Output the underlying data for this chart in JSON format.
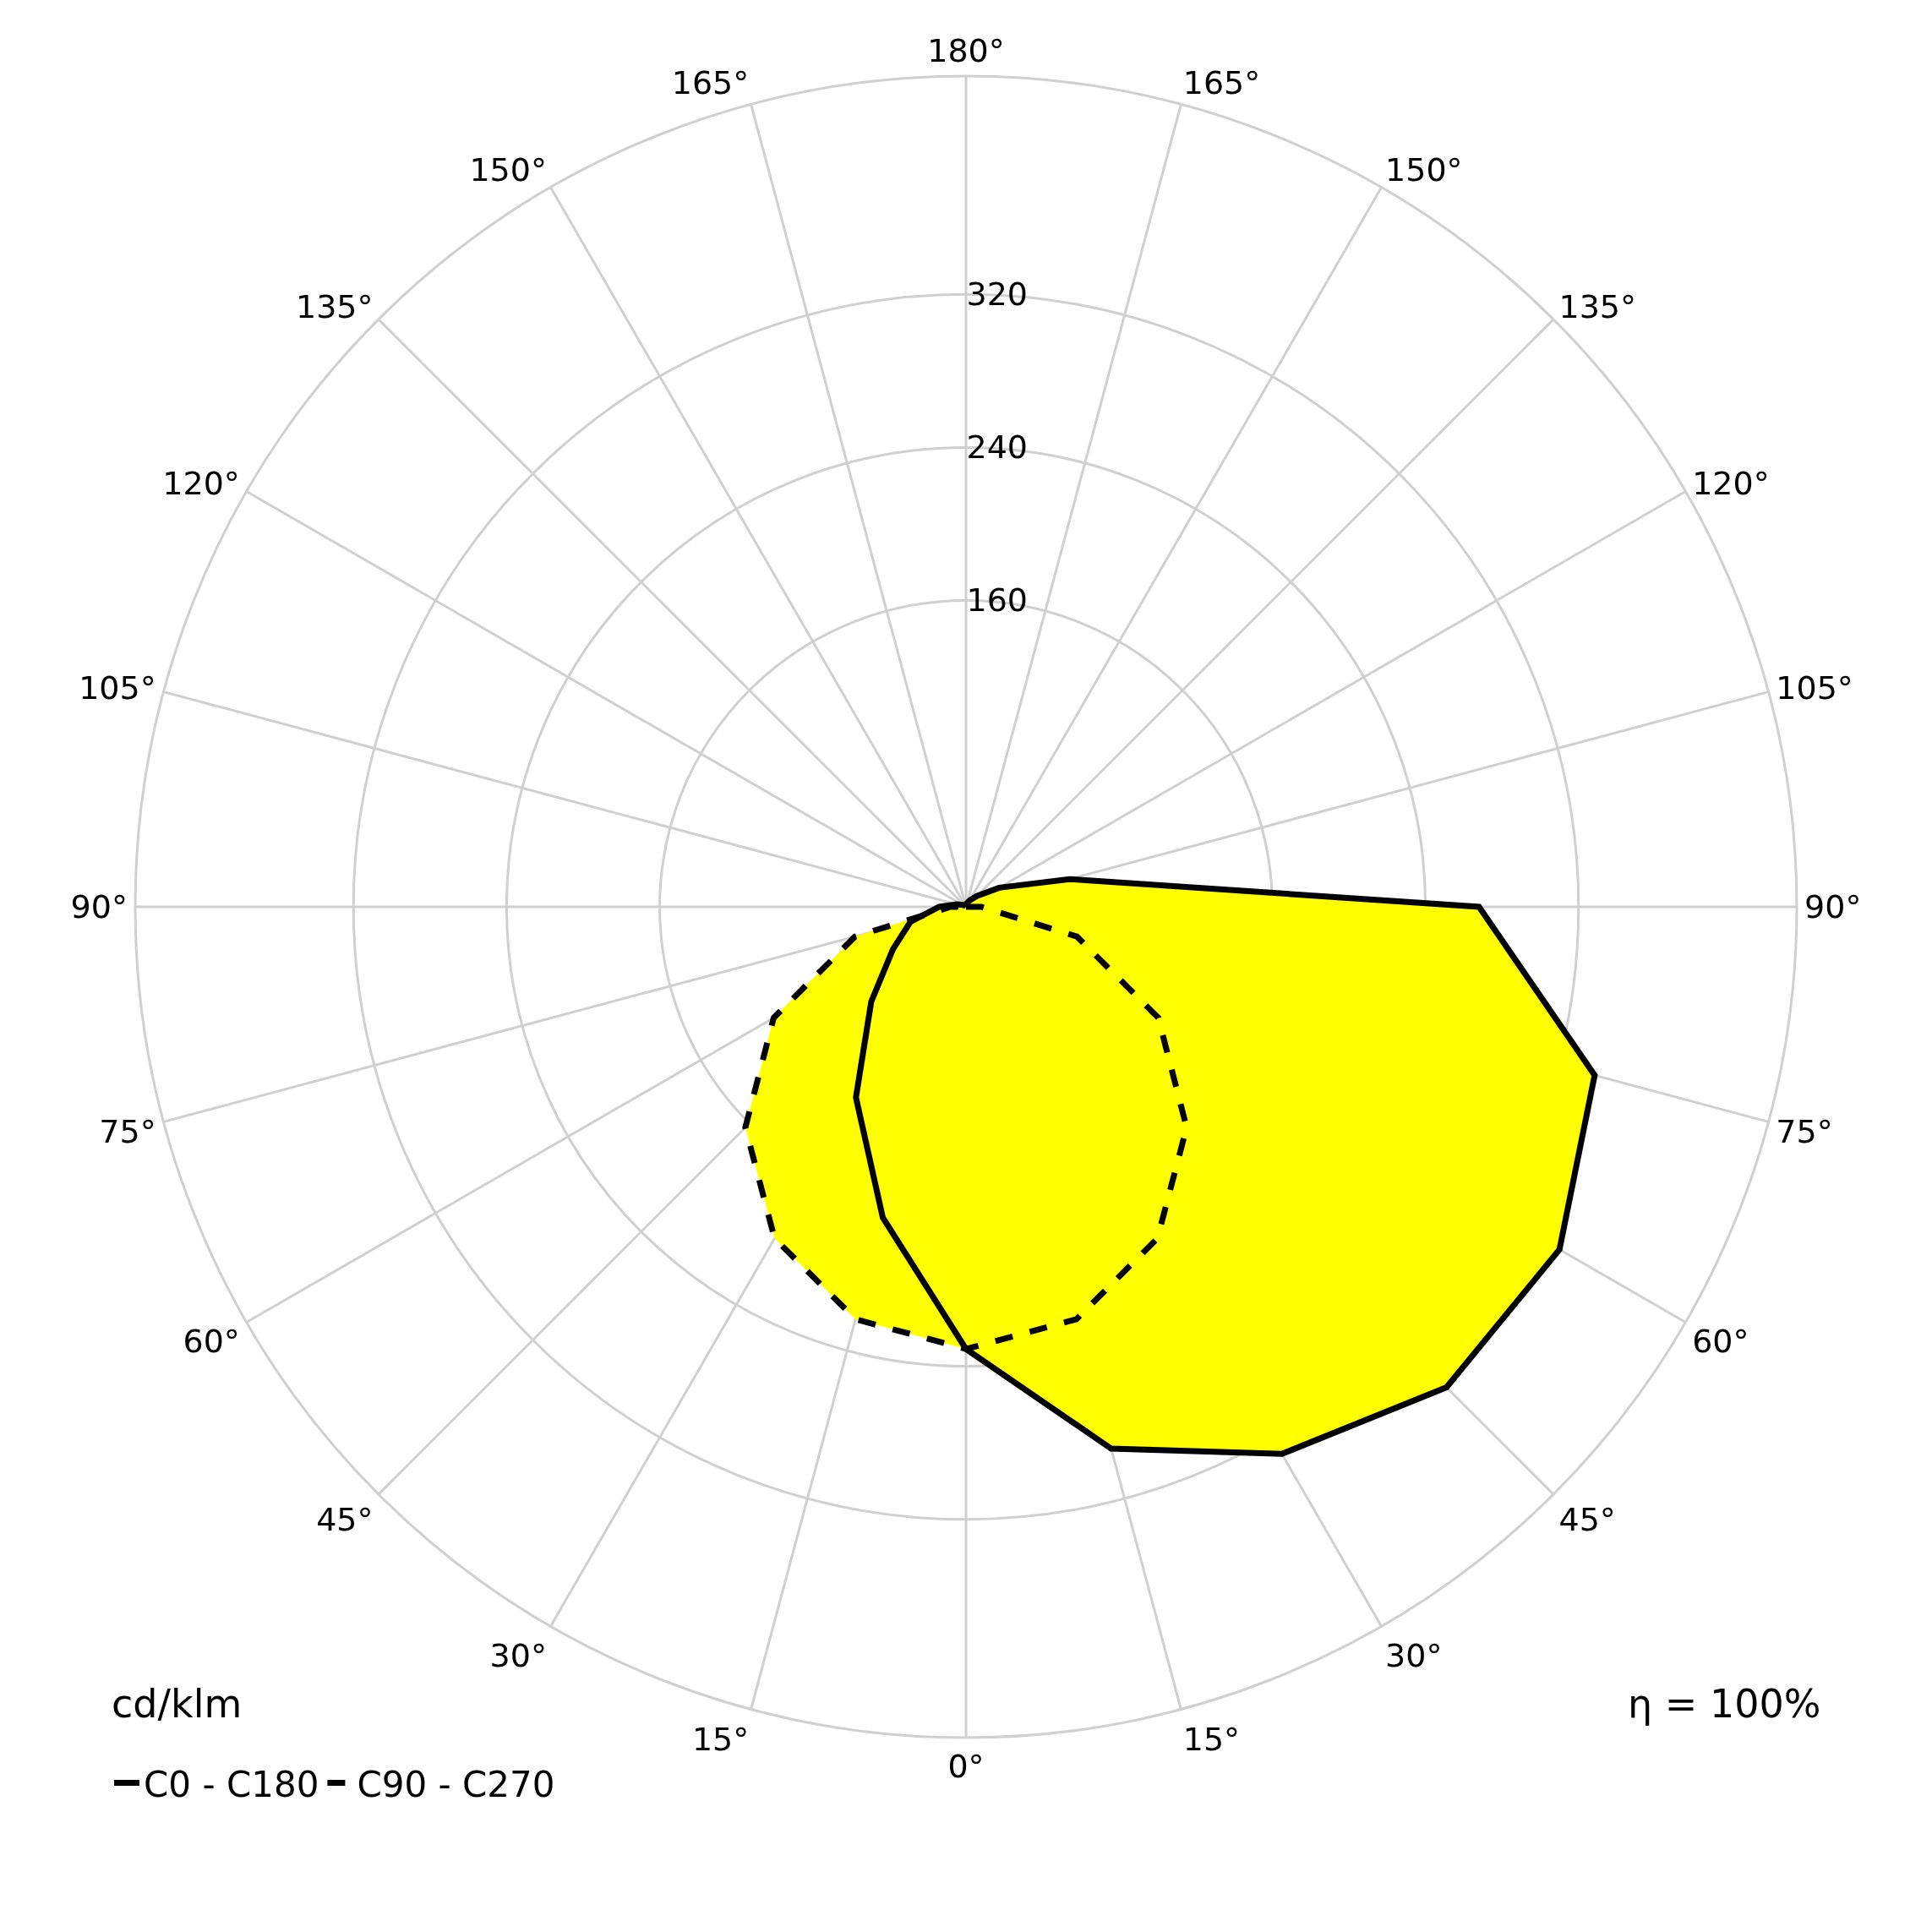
{
  "chart_data": {
    "type": "radar",
    "ylabel": "cd/klm",
    "annotations": [
      "η = 100%"
    ],
    "categories": [
      "180°",
      "165°",
      "150°",
      "135°",
      "120°",
      "105°",
      "90°",
      "75°",
      "60°",
      "45°",
      "30°",
      "15°",
      "0°",
      "15°",
      "30°",
      "45°",
      "60°",
      "75°",
      "90°",
      "105°",
      "120°",
      "135°",
      "150°",
      "165°"
    ],
    "ylim": [
      0,
      434
    ],
    "yticks": [
      160,
      240,
      320
    ],
    "grid": true,
    "legend": "bottom left",
    "marker": "none",
    "series": [
      {
        "name": "C0 - C180",
        "type": "area",
        "color": "#000000",
        "line_style": "solid",
        "values": [
          0,
          2,
          4,
          8,
          20,
          56,
          268,
          340,
          358,
          355,
          330,
          293,
          231,
          168,
          115,
          70,
          44,
          30,
          14,
          5,
          2,
          1,
          0,
          0
        ]
      },
      {
        "name": "C90 - C270",
        "type": "area",
        "color": "#000000",
        "line_style": "dashed",
        "values": [
          0,
          0,
          0,
          0,
          0,
          0,
          8,
          60,
          116,
          163,
          200,
          223,
          231,
          223,
          200,
          163,
          116,
          60,
          8,
          0,
          0,
          0,
          0,
          0
        ]
      }
    ]
  }
}
